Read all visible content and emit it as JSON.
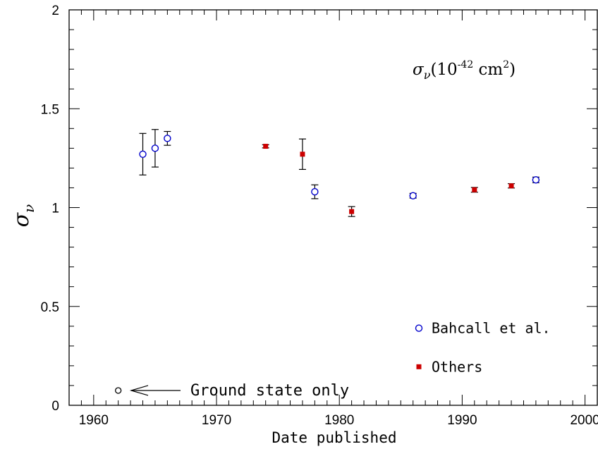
{
  "chart_data": {
    "type": "scatter",
    "title": "",
    "xlabel": "Date published",
    "ylabel": "σ",
    "ylabel_subscript": "ν",
    "xlim": [
      1958,
      2001
    ],
    "ylim": [
      0,
      2
    ],
    "xticks": [
      1960,
      1970,
      1980,
      1990,
      2000
    ],
    "xtick_labels": [
      "1960",
      "1970",
      "1980",
      "1990",
      "2000"
    ],
    "yticks": [
      0,
      0.5,
      1,
      1.5,
      2
    ],
    "ytick_labels": [
      "0",
      "0.5",
      "1",
      "1.5",
      "2"
    ],
    "grid": false,
    "legend_position": "bottom-right",
    "units_annotation": {
      "symbol": "σ",
      "subscript": "ν",
      "open": "(10",
      "exponent": "-42",
      "unit": " cm",
      "unit_exponent": "2",
      "close": ")"
    },
    "series": [
      {
        "name": "Bahcall et al.",
        "marker": "open-circle",
        "color": "#0000cc",
        "points": [
          {
            "x": 1964,
            "y": 1.27,
            "err": 0.105
          },
          {
            "x": 1965,
            "y": 1.3,
            "err": 0.095
          },
          {
            "x": 1966,
            "y": 1.35,
            "err": 0.035
          },
          {
            "x": 1978,
            "y": 1.08,
            "err": 0.035
          },
          {
            "x": 1986,
            "y": 1.06,
            "err": 0.012
          },
          {
            "x": 1996,
            "y": 1.14,
            "err": 0.014
          }
        ]
      },
      {
        "name": "Others",
        "marker": "filled-square",
        "color": "#cc0000",
        "points": [
          {
            "x": 1974,
            "y": 1.31,
            "err": 0.008
          },
          {
            "x": 1977,
            "y": 1.27,
            "err": 0.077
          },
          {
            "x": 1981,
            "y": 0.98,
            "err": 0.025
          },
          {
            "x": 1991,
            "y": 1.09,
            "err": 0.012
          },
          {
            "x": 1994,
            "y": 1.11,
            "err": 0.011
          }
        ]
      }
    ],
    "annotation": {
      "text": "Ground state only",
      "point": {
        "x": 1962,
        "y": 0.075
      },
      "marker": "open-circle",
      "color": "#000000"
    }
  }
}
